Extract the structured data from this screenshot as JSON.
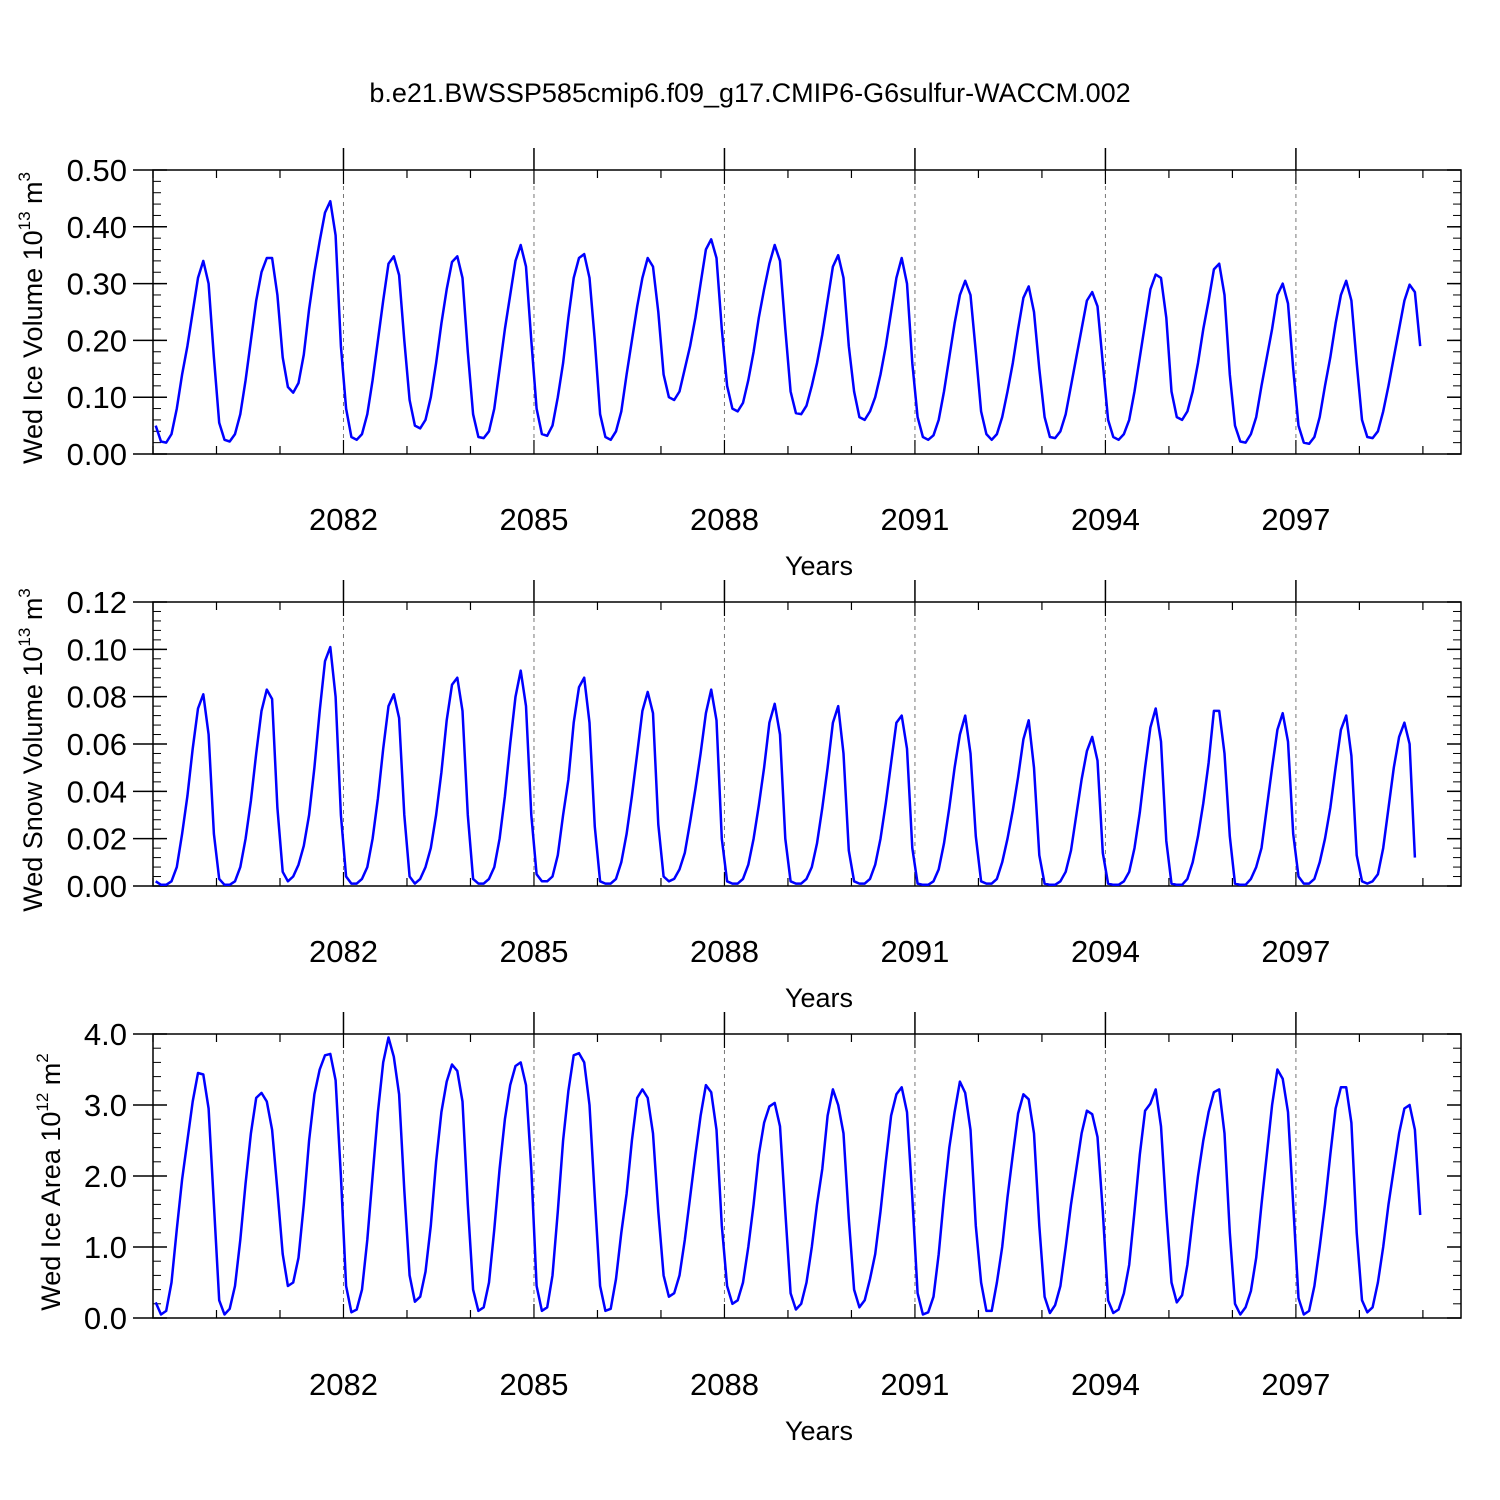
{
  "title": "b.e21.BWSSP585cmip6.f09_g17.CMIP6-G6sulfur-WACCM.002",
  "colors": {
    "line": "#0000ff",
    "axis": "#000000",
    "grid": "#777777"
  },
  "chart_data": [
    {
      "type": "line",
      "ylabel_main": "Wed Ice Volume 10",
      "ylabel_exp": "13",
      "ylabel_unit": "m",
      "ylabel_unit_exp": "3",
      "xlabel": "Years",
      "ylim": [
        0,
        0.5
      ],
      "xlim": [
        2079.0,
        2099.6
      ],
      "yticks": [
        "0.00",
        "0.10",
        "0.20",
        "0.30",
        "0.40",
        "0.50"
      ],
      "yticks_values": [
        0,
        0.1,
        0.2,
        0.3,
        0.4,
        0.5
      ],
      "xticks": [
        "2082",
        "2085",
        "2088",
        "2091",
        "2094",
        "2097"
      ],
      "xticks_values": [
        2082,
        2085,
        2088,
        2091,
        2094,
        2097
      ],
      "grid": "vertical dashed at x ticks",
      "series": [
        {
          "x_start": 2079.042,
          "x_step": 0.08333,
          "values": [
            0.05,
            0.022,
            0.02,
            0.035,
            0.08,
            0.14,
            0.19,
            0.25,
            0.31,
            0.34,
            0.3,
            0.17,
            0.055,
            0.025,
            0.022,
            0.035,
            0.07,
            0.13,
            0.2,
            0.27,
            0.32,
            0.345,
            0.345,
            0.28,
            0.17,
            0.118,
            0.108,
            0.125,
            0.175,
            0.255,
            0.32,
            0.375,
            0.425,
            0.445,
            0.385,
            0.19,
            0.08,
            0.03,
            0.025,
            0.035,
            0.07,
            0.13,
            0.2,
            0.27,
            0.335,
            0.348,
            0.315,
            0.2,
            0.095,
            0.05,
            0.045,
            0.06,
            0.1,
            0.16,
            0.23,
            0.29,
            0.338,
            0.348,
            0.31,
            0.18,
            0.07,
            0.03,
            0.028,
            0.04,
            0.08,
            0.15,
            0.22,
            0.28,
            0.34,
            0.368,
            0.33,
            0.2,
            0.08,
            0.035,
            0.032,
            0.05,
            0.1,
            0.16,
            0.24,
            0.31,
            0.345,
            0.352,
            0.31,
            0.2,
            0.07,
            0.03,
            0.025,
            0.04,
            0.075,
            0.14,
            0.2,
            0.26,
            0.31,
            0.345,
            0.33,
            0.25,
            0.14,
            0.1,
            0.095,
            0.11,
            0.15,
            0.19,
            0.24,
            0.3,
            0.36,
            0.378,
            0.345,
            0.22,
            0.12,
            0.08,
            0.075,
            0.09,
            0.13,
            0.18,
            0.24,
            0.29,
            0.335,
            0.368,
            0.34,
            0.22,
            0.11,
            0.072,
            0.07,
            0.085,
            0.12,
            0.16,
            0.21,
            0.27,
            0.33,
            0.35,
            0.31,
            0.19,
            0.11,
            0.065,
            0.06,
            0.075,
            0.1,
            0.14,
            0.19,
            0.25,
            0.31,
            0.345,
            0.3,
            0.16,
            0.065,
            0.03,
            0.025,
            0.033,
            0.06,
            0.11,
            0.17,
            0.23,
            0.28,
            0.305,
            0.28,
            0.18,
            0.075,
            0.035,
            0.025,
            0.035,
            0.065,
            0.11,
            0.16,
            0.22,
            0.275,
            0.295,
            0.25,
            0.15,
            0.065,
            0.03,
            0.028,
            0.04,
            0.07,
            0.12,
            0.17,
            0.22,
            0.27,
            0.285,
            0.26,
            0.16,
            0.06,
            0.03,
            0.025,
            0.035,
            0.06,
            0.11,
            0.17,
            0.23,
            0.29,
            0.316,
            0.31,
            0.24,
            0.11,
            0.065,
            0.06,
            0.075,
            0.11,
            0.16,
            0.22,
            0.27,
            0.325,
            0.335,
            0.28,
            0.14,
            0.05,
            0.022,
            0.02,
            0.035,
            0.065,
            0.12,
            0.17,
            0.22,
            0.28,
            0.3,
            0.265,
            0.15,
            0.05,
            0.02,
            0.018,
            0.03,
            0.065,
            0.12,
            0.17,
            0.23,
            0.28,
            0.305,
            0.27,
            0.16,
            0.06,
            0.03,
            0.028,
            0.04,
            0.075,
            0.12,
            0.17,
            0.22,
            0.27,
            0.298,
            0.285,
            0.19
          ]
        }
      ]
    },
    {
      "type": "line",
      "ylabel_main": "Wed Snow Volume 10",
      "ylabel_exp": "13",
      "ylabel_unit": "m",
      "ylabel_unit_exp": "3",
      "xlabel": "Years",
      "ylim": [
        0,
        0.12
      ],
      "xlim": [
        2079.0,
        2099.6
      ],
      "yticks": [
        "0.00",
        "0.02",
        "0.04",
        "0.06",
        "0.08",
        "0.10",
        "0.12"
      ],
      "yticks_values": [
        0,
        0.02,
        0.04,
        0.06,
        0.08,
        0.1,
        0.12
      ],
      "xticks": [
        "2082",
        "2085",
        "2088",
        "2091",
        "2094",
        "2097"
      ],
      "xticks_values": [
        2082,
        2085,
        2088,
        2091,
        2094,
        2097
      ],
      "grid": "vertical dashed at x ticks",
      "series": [
        {
          "x_start": 2079.042,
          "x_step": 0.08333,
          "values": [
            0.002,
            0.0005,
            0.0005,
            0.002,
            0.008,
            0.022,
            0.038,
            0.058,
            0.075,
            0.081,
            0.064,
            0.022,
            0.003,
            0.0005,
            0.0005,
            0.002,
            0.008,
            0.02,
            0.036,
            0.056,
            0.074,
            0.083,
            0.079,
            0.033,
            0.006,
            0.002,
            0.004,
            0.009,
            0.017,
            0.03,
            0.05,
            0.074,
            0.095,
            0.101,
            0.08,
            0.03,
            0.004,
            0.001,
            0.001,
            0.003,
            0.008,
            0.02,
            0.037,
            0.058,
            0.076,
            0.081,
            0.071,
            0.03,
            0.004,
            0.001,
            0.003,
            0.008,
            0.016,
            0.03,
            0.048,
            0.07,
            0.085,
            0.088,
            0.074,
            0.03,
            0.003,
            0.001,
            0.001,
            0.003,
            0.008,
            0.02,
            0.038,
            0.06,
            0.08,
            0.091,
            0.076,
            0.03,
            0.005,
            0.002,
            0.002,
            0.004,
            0.013,
            0.03,
            0.045,
            0.069,
            0.084,
            0.088,
            0.069,
            0.025,
            0.002,
            0.001,
            0.001,
            0.003,
            0.01,
            0.022,
            0.038,
            0.056,
            0.074,
            0.082,
            0.073,
            0.026,
            0.004,
            0.002,
            0.003,
            0.007,
            0.014,
            0.027,
            0.041,
            0.056,
            0.073,
            0.083,
            0.07,
            0.02,
            0.002,
            0.001,
            0.001,
            0.003,
            0.009,
            0.02,
            0.034,
            0.05,
            0.069,
            0.077,
            0.064,
            0.02,
            0.002,
            0.001,
            0.001,
            0.003,
            0.008,
            0.018,
            0.033,
            0.05,
            0.069,
            0.076,
            0.056,
            0.015,
            0.002,
            0.001,
            0.001,
            0.003,
            0.009,
            0.02,
            0.035,
            0.052,
            0.069,
            0.072,
            0.058,
            0.016,
            0.001,
            0.0005,
            0.0005,
            0.002,
            0.007,
            0.018,
            0.033,
            0.05,
            0.064,
            0.072,
            0.056,
            0.021,
            0.002,
            0.001,
            0.001,
            0.003,
            0.01,
            0.02,
            0.032,
            0.046,
            0.062,
            0.07,
            0.05,
            0.013,
            0.001,
            0.0005,
            0.0005,
            0.002,
            0.006,
            0.015,
            0.03,
            0.045,
            0.057,
            0.063,
            0.053,
            0.014,
            0.001,
            0.0005,
            0.0005,
            0.002,
            0.006,
            0.016,
            0.031,
            0.05,
            0.067,
            0.075,
            0.061,
            0.019,
            0.001,
            0.0005,
            0.0005,
            0.003,
            0.01,
            0.021,
            0.035,
            0.052,
            0.074,
            0.074,
            0.056,
            0.021,
            0.001,
            0.0005,
            0.0005,
            0.003,
            0.008,
            0.016,
            0.033,
            0.05,
            0.066,
            0.073,
            0.061,
            0.022,
            0.004,
            0.001,
            0.001,
            0.003,
            0.01,
            0.02,
            0.033,
            0.05,
            0.066,
            0.072,
            0.055,
            0.013,
            0.002,
            0.001,
            0.002,
            0.005,
            0.016,
            0.033,
            0.05,
            0.063,
            0.069,
            0.06,
            0.012
          ]
        }
      ]
    },
    {
      "type": "line",
      "ylabel_main": "Wed Ice Area 10",
      "ylabel_exp": "12",
      "ylabel_unit": "m",
      "ylabel_unit_exp": "2",
      "xlabel": "Years",
      "ylim": [
        0,
        4.0
      ],
      "xlim": [
        2079.0,
        2099.6
      ],
      "yticks": [
        "0.0",
        "1.0",
        "2.0",
        "3.0",
        "4.0"
      ],
      "yticks_values": [
        0,
        1,
        2,
        3,
        4
      ],
      "xticks": [
        "2082",
        "2085",
        "2088",
        "2091",
        "2094",
        "2097"
      ],
      "xticks_values": [
        2082,
        2085,
        2088,
        2091,
        2094,
        2097
      ],
      "grid": "vertical dashed at x ticks",
      "series": [
        {
          "x_start": 2079.042,
          "x_step": 0.08333,
          "values": [
            0.22,
            0.05,
            0.1,
            0.5,
            1.25,
            1.95,
            2.5,
            3.05,
            3.45,
            3.43,
            2.95,
            1.6,
            0.25,
            0.05,
            0.13,
            0.45,
            1.1,
            1.9,
            2.6,
            3.1,
            3.17,
            3.05,
            2.65,
            1.8,
            0.9,
            0.45,
            0.5,
            0.85,
            1.6,
            2.5,
            3.15,
            3.5,
            3.7,
            3.72,
            3.35,
            2.0,
            0.45,
            0.08,
            0.12,
            0.4,
            1.1,
            2.0,
            2.9,
            3.6,
            3.95,
            3.68,
            3.15,
            1.8,
            0.6,
            0.23,
            0.3,
            0.65,
            1.3,
            2.2,
            2.9,
            3.33,
            3.57,
            3.48,
            3.05,
            1.6,
            0.4,
            0.1,
            0.15,
            0.5,
            1.25,
            2.1,
            2.8,
            3.28,
            3.55,
            3.6,
            3.28,
            2.1,
            0.45,
            0.1,
            0.15,
            0.6,
            1.5,
            2.5,
            3.2,
            3.7,
            3.73,
            3.6,
            3.0,
            1.7,
            0.45,
            0.1,
            0.13,
            0.55,
            1.2,
            1.75,
            2.5,
            3.1,
            3.22,
            3.1,
            2.6,
            1.5,
            0.6,
            0.3,
            0.35,
            0.6,
            1.1,
            1.7,
            2.3,
            2.85,
            3.28,
            3.18,
            2.65,
            1.3,
            0.45,
            0.2,
            0.25,
            0.5,
            1.0,
            1.6,
            2.3,
            2.75,
            2.98,
            3.03,
            2.7,
            1.5,
            0.35,
            0.12,
            0.2,
            0.5,
            1.0,
            1.6,
            2.1,
            2.85,
            3.22,
            3.0,
            2.6,
            1.4,
            0.4,
            0.15,
            0.25,
            0.55,
            0.9,
            1.5,
            2.2,
            2.85,
            3.15,
            3.25,
            2.9,
            1.7,
            0.35,
            0.05,
            0.08,
            0.3,
            0.9,
            1.7,
            2.4,
            2.9,
            3.33,
            3.17,
            2.65,
            1.3,
            0.5,
            0.1,
            0.1,
            0.5,
            1.0,
            1.7,
            2.3,
            2.88,
            3.15,
            3.08,
            2.6,
            1.3,
            0.3,
            0.07,
            0.18,
            0.45,
            1.0,
            1.6,
            2.1,
            2.6,
            2.92,
            2.87,
            2.55,
            1.5,
            0.25,
            0.07,
            0.12,
            0.35,
            0.75,
            1.5,
            2.3,
            2.92,
            3.02,
            3.22,
            2.7,
            1.5,
            0.5,
            0.22,
            0.32,
            0.75,
            1.4,
            2.0,
            2.5,
            2.9,
            3.18,
            3.22,
            2.6,
            1.2,
            0.2,
            0.05,
            0.15,
            0.38,
            0.85,
            1.6,
            2.3,
            3.0,
            3.5,
            3.37,
            2.9,
            1.6,
            0.28,
            0.05,
            0.1,
            0.45,
            1.0,
            1.6,
            2.3,
            2.95,
            3.25,
            3.25,
            2.75,
            1.2,
            0.25,
            0.08,
            0.15,
            0.5,
            1.0,
            1.6,
            2.1,
            2.6,
            2.95,
            3.0,
            2.65,
            1.45
          ]
        }
      ]
    }
  ]
}
